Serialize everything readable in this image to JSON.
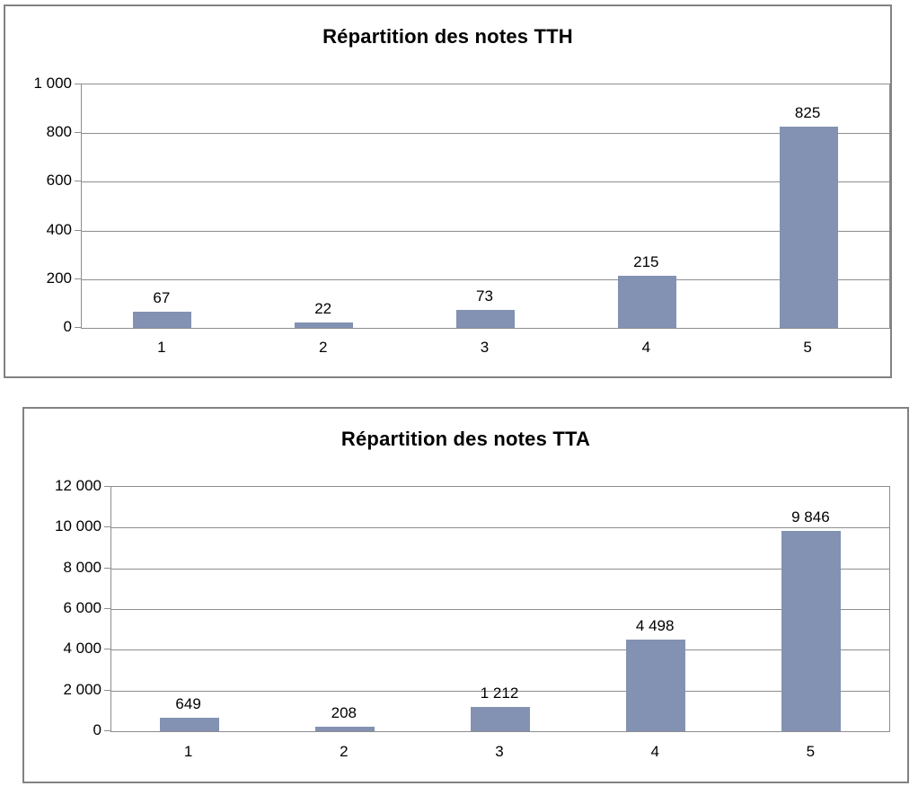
{
  "colors": {
    "bar": "#8392B2",
    "grid": "#8e8e8e",
    "panel_border": "#828282",
    "text": "#000000"
  },
  "chart_data": [
    {
      "type": "bar",
      "title": "Répartition des notes TTH",
      "categories": [
        "1",
        "2",
        "3",
        "4",
        "5"
      ],
      "values": [
        67,
        22,
        73,
        215,
        825
      ],
      "value_labels": [
        "67",
        "22",
        "73",
        "215",
        "825"
      ],
      "y_ticks": [
        "1 000",
        "800",
        "600",
        "400",
        "200",
        "0"
      ],
      "ylim": [
        0,
        1000
      ],
      "xlabel": "",
      "ylabel": "",
      "grid": true,
      "legend": false
    },
    {
      "type": "bar",
      "title": "Répartition des notes TTA",
      "categories": [
        "1",
        "2",
        "3",
        "4",
        "5"
      ],
      "values": [
        649,
        208,
        1212,
        4498,
        9846
      ],
      "value_labels": [
        "649",
        "208",
        "1 212",
        "4 498",
        "9 846"
      ],
      "y_ticks": [
        "12 000",
        "10 000",
        "8 000",
        "6 000",
        "4 000",
        "2 000",
        "0"
      ],
      "ylim": [
        0,
        12000
      ],
      "xlabel": "",
      "ylabel": "",
      "grid": true,
      "legend": false
    }
  ]
}
